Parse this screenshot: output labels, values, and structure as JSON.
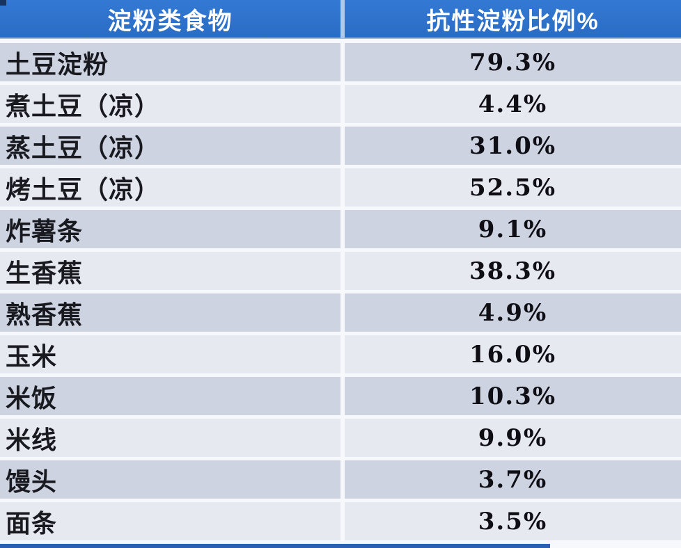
{
  "table": {
    "header": {
      "food": "淀粉类食物",
      "value": "抗性淀粉比例%"
    },
    "rows": [
      {
        "food": "土豆淀粉",
        "value": "79.3%"
      },
      {
        "food": "煮土豆（凉）",
        "value": "4.4%"
      },
      {
        "food": "蒸土豆（凉）",
        "value": "31.0%"
      },
      {
        "food": "烤土豆（凉）",
        "value": "52.5%"
      },
      {
        "food": "炸薯条",
        "value": "9.1%"
      },
      {
        "food": "生香蕉",
        "value": "38.3%"
      },
      {
        "food": "熟香蕉",
        "value": "4.9%"
      },
      {
        "food": "玉米",
        "value": "16.0%"
      },
      {
        "food": "米饭",
        "value": "10.3%"
      },
      {
        "food": "米线",
        "value": "9.9%"
      },
      {
        "food": "馒头",
        "value": "3.7%"
      },
      {
        "food": "面条",
        "value": "3.5%"
      }
    ]
  },
  "chart_data": {
    "type": "table",
    "columns": [
      "淀粉类食物",
      "抗性淀粉比例%"
    ],
    "rows": [
      [
        "土豆淀粉",
        79.3
      ],
      [
        "煮土豆（凉）",
        4.4
      ],
      [
        "蒸土豆（凉）",
        31.0
      ],
      [
        "烤土豆（凉）",
        52.5
      ],
      [
        "炸薯条",
        9.1
      ],
      [
        "生香蕉",
        38.3
      ],
      [
        "熟香蕉",
        4.9
      ],
      [
        "玉米",
        16.0
      ],
      [
        "米饭",
        10.3
      ],
      [
        "米线",
        9.9
      ],
      [
        "馒头",
        3.7
      ],
      [
        "面条",
        3.5
      ]
    ],
    "unit": "%"
  },
  "colors": {
    "header_bg": "#2e73cc",
    "header_text": "#ffffff",
    "row_dark": "#cdd3e1",
    "row_light": "#e7e9f1",
    "gap": "#f7f8fb",
    "cell_text": "#15151a",
    "bottom_strip": "#2b5fb4"
  }
}
